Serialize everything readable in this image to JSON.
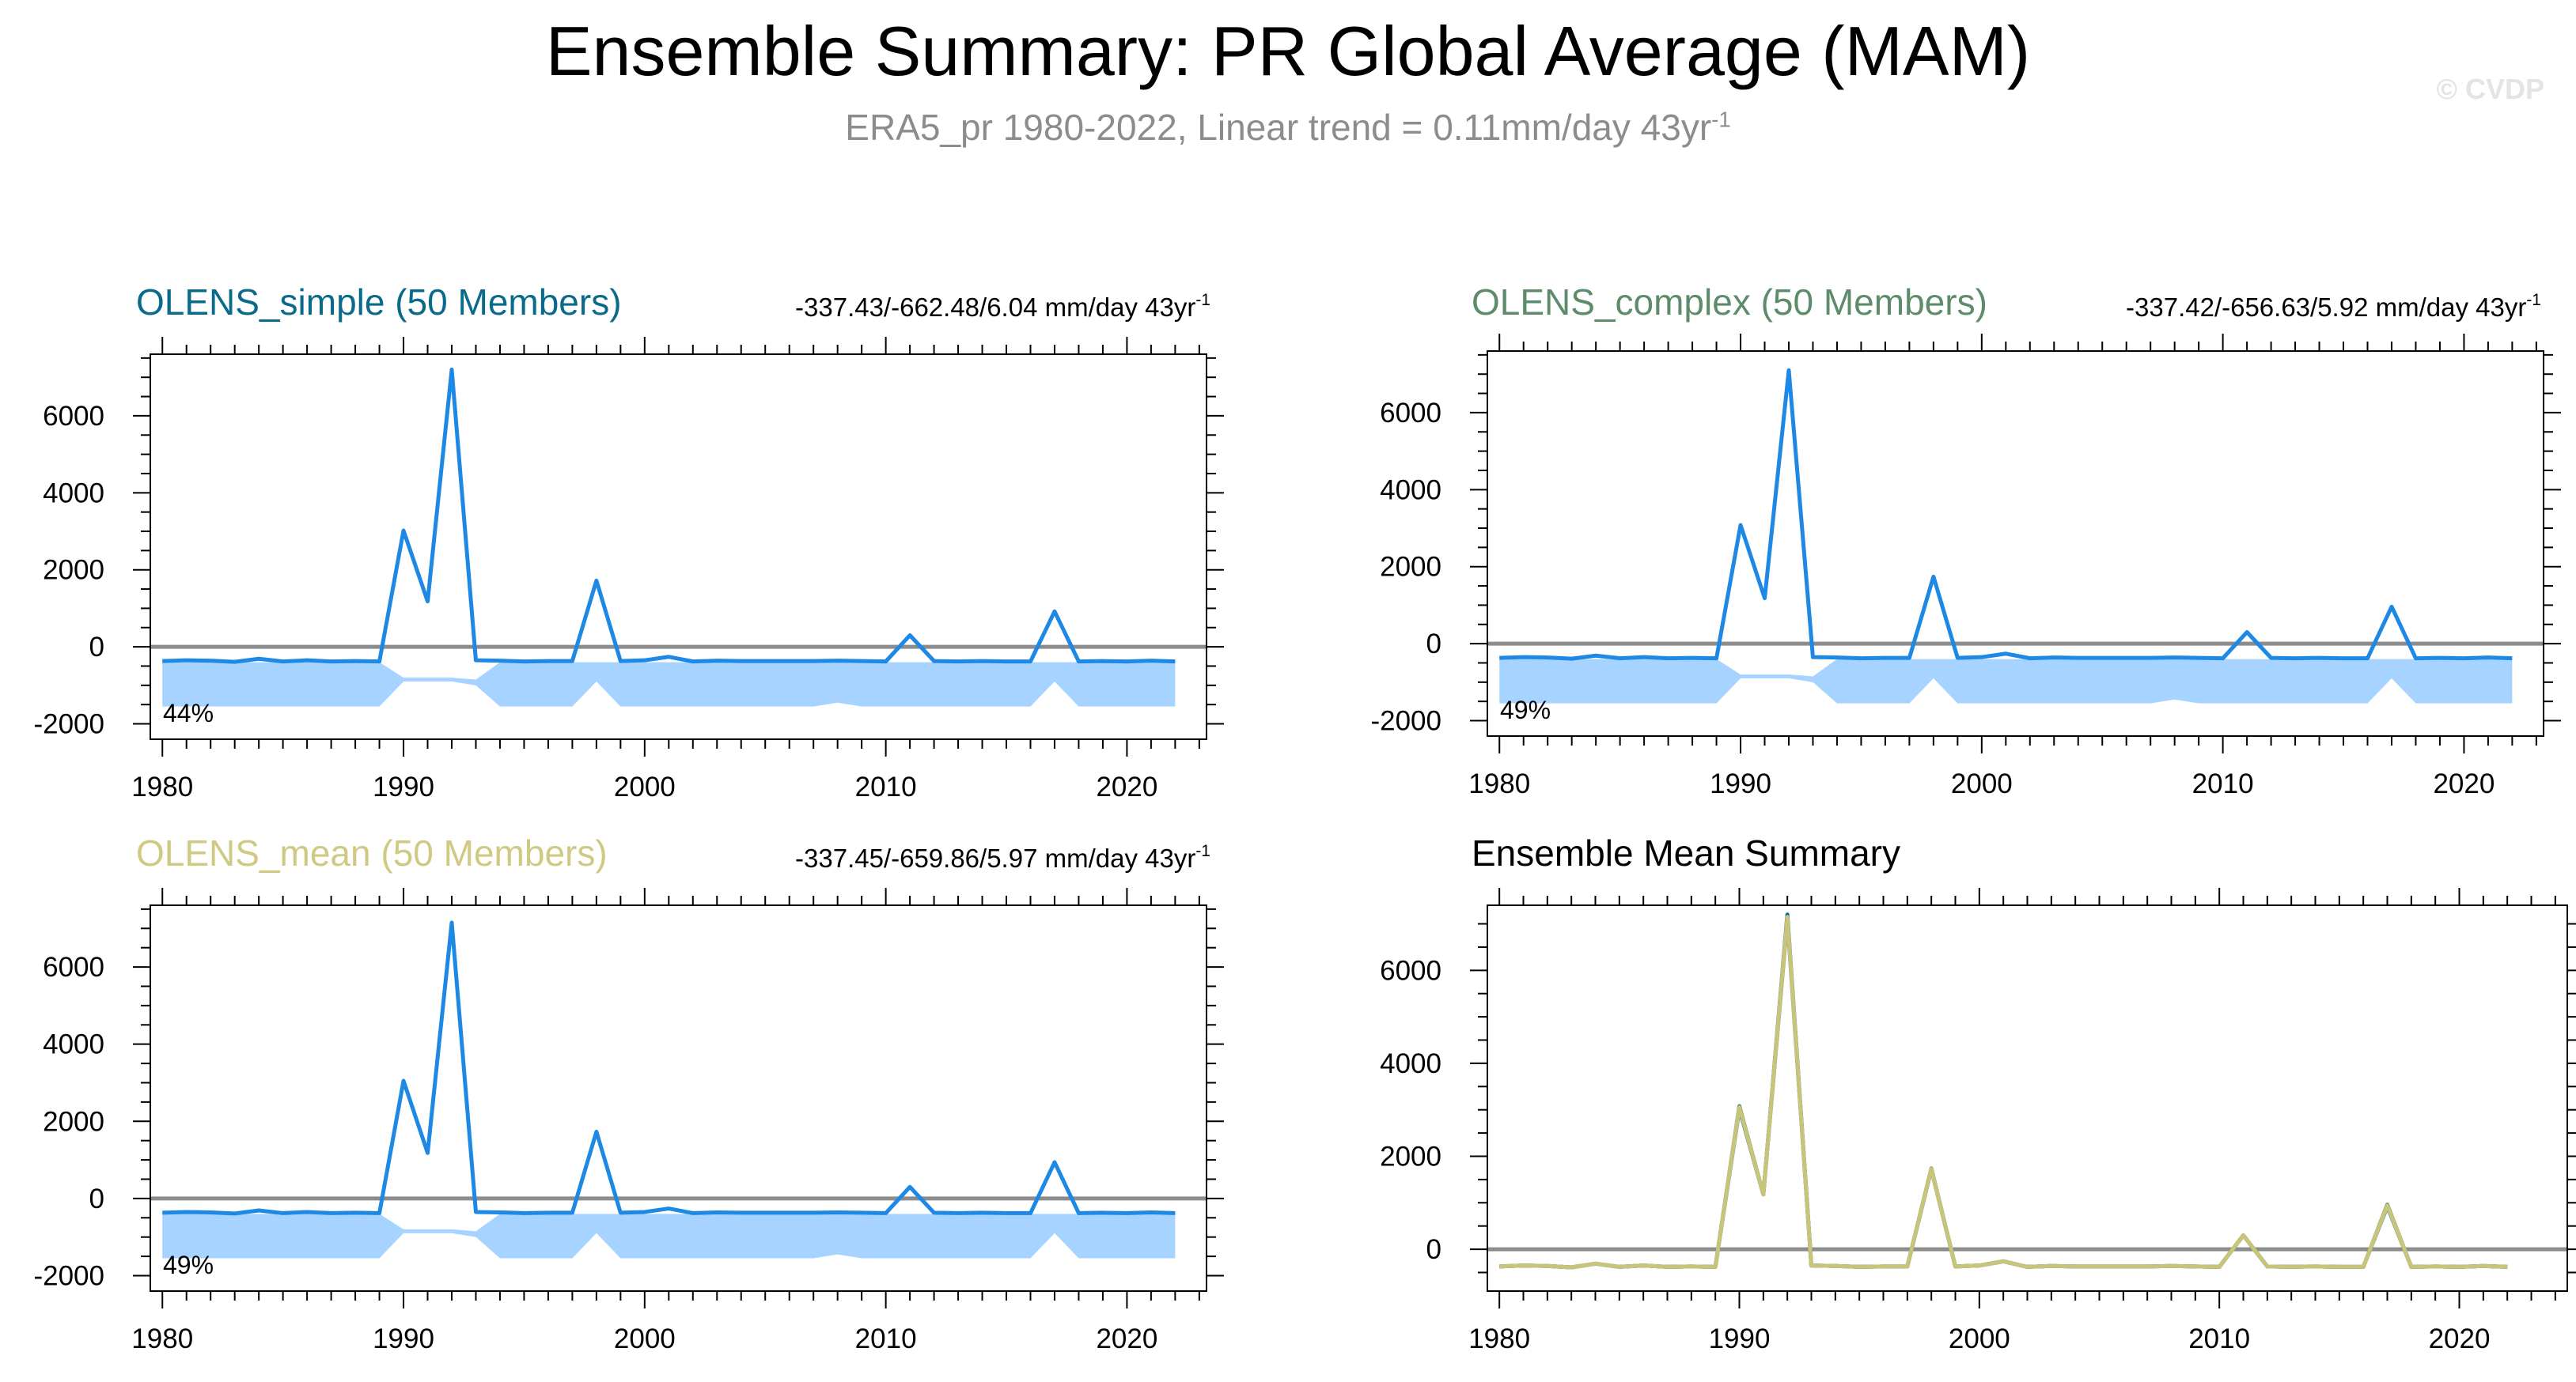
{
  "figure": {
    "title": "Ensemble Summary: PR Global Average (MAM)",
    "subtitle_main": "ERA5_pr 1980-2022, Linear trend = 0.11mm/day 43yr",
    "subtitle_sup": "-1",
    "credit": "© CVDP"
  },
  "colors": {
    "line": "#1e88e5",
    "band": "#a6d3ff",
    "zero": "#8c8c8c",
    "simple_title": "#0a6a8a",
    "complex_title": "#5e8c6a",
    "mean_title": "#cfc983",
    "summary_title": "#000000",
    "summary_line": "#c8c47a"
  },
  "chart_data": [
    {
      "type": "line",
      "title": "OLENS_simple (50 Members)",
      "stats": "-337.43/-662.48/6.04 mm/day 43yr",
      "stats_sup": "-1",
      "percent_label": "44%",
      "x": [
        1980,
        1981,
        1982,
        1983,
        1984,
        1985,
        1986,
        1987,
        1988,
        1989,
        1990,
        1991,
        1992,
        1993,
        1994,
        1995,
        1996,
        1997,
        1998,
        1999,
        2000,
        2001,
        2002,
        2003,
        2004,
        2005,
        2006,
        2007,
        2008,
        2009,
        2010,
        2011,
        2012,
        2013,
        2014,
        2015,
        2016,
        2017,
        2018,
        2019,
        2020,
        2021,
        2022
      ],
      "values": [
        -370,
        -350,
        -360,
        -390,
        -310,
        -380,
        -350,
        -380,
        -370,
        -380,
        3020,
        1180,
        7200,
        -350,
        -360,
        -380,
        -370,
        -370,
        1720,
        -370,
        -350,
        -260,
        -380,
        -360,
        -370,
        -370,
        -370,
        -370,
        -360,
        -370,
        -380,
        300,
        -370,
        -380,
        -370,
        -380,
        -380,
        920,
        -380,
        -370,
        -380,
        -360,
        -380
      ],
      "band_upper": [
        -400,
        -400,
        -400,
        -400,
        -400,
        -400,
        -400,
        -400,
        -400,
        -400,
        -800,
        -800,
        -800,
        -850,
        -400,
        -400,
        -400,
        -400,
        -400,
        -400,
        -400,
        -400,
        -400,
        -400,
        -400,
        -400,
        -400,
        -400,
        -400,
        -400,
        -400,
        -400,
        -400,
        -400,
        -400,
        -400,
        -400,
        -400,
        -400,
        -400,
        -400,
        -400,
        -400
      ],
      "band_lower": [
        -1550,
        -1550,
        -1550,
        -1550,
        -1550,
        -1550,
        -1550,
        -1550,
        -1550,
        -1550,
        -900,
        -900,
        -900,
        -1000,
        -1550,
        -1550,
        -1550,
        -1550,
        -900,
        -1550,
        -1550,
        -1550,
        -1550,
        -1550,
        -1550,
        -1550,
        -1550,
        -1550,
        -1450,
        -1550,
        -1550,
        -1550,
        -1550,
        -1550,
        -1550,
        -1550,
        -1550,
        -900,
        -1550,
        -1550,
        -1550,
        -1550,
        -1550
      ],
      "ylim": [
        -2400,
        7600
      ],
      "yticks": [
        -2000,
        0,
        2000,
        4000,
        6000
      ],
      "ytick_labels": [
        "-2000",
        "0",
        "2000",
        "4000",
        "6000"
      ],
      "xlim": [
        1979.5,
        2023.3
      ],
      "xticks": [
        1980,
        1990,
        2000,
        2010,
        2020
      ],
      "xtick_labels": [
        "1980",
        "1990",
        "2000",
        "2010",
        "2020"
      ]
    },
    {
      "type": "line",
      "title": "OLENS_complex (50 Members)",
      "stats": "-337.42/-656.63/5.92 mm/day 43yr",
      "stats_sup": "-1",
      "percent_label": "49%",
      "x": [
        1980,
        1981,
        1982,
        1983,
        1984,
        1985,
        1986,
        1987,
        1988,
        1989,
        1990,
        1991,
        1992,
        1993,
        1994,
        1995,
        1996,
        1997,
        1998,
        1999,
        2000,
        2001,
        2002,
        2003,
        2004,
        2005,
        2006,
        2007,
        2008,
        2009,
        2010,
        2011,
        2012,
        2013,
        2014,
        2015,
        2016,
        2017,
        2018,
        2019,
        2020,
        2021,
        2022
      ],
      "values": [
        -370,
        -350,
        -360,
        -390,
        -310,
        -380,
        -350,
        -380,
        -370,
        -380,
        3080,
        1180,
        7100,
        -350,
        -360,
        -380,
        -370,
        -370,
        1740,
        -370,
        -350,
        -260,
        -380,
        -360,
        -370,
        -370,
        -370,
        -370,
        -360,
        -370,
        -380,
        300,
        -370,
        -380,
        -370,
        -380,
        -380,
        960,
        -380,
        -370,
        -380,
        -360,
        -380
      ],
      "band_upper": [
        -400,
        -400,
        -400,
        -400,
        -400,
        -400,
        -400,
        -400,
        -400,
        -400,
        -800,
        -800,
        -800,
        -850,
        -400,
        -400,
        -400,
        -400,
        -400,
        -400,
        -400,
        -400,
        -400,
        -400,
        -400,
        -400,
        -400,
        -400,
        -400,
        -400,
        -400,
        -400,
        -400,
        -400,
        -400,
        -400,
        -400,
        -400,
        -400,
        -400,
        -400,
        -400,
        -400
      ],
      "band_lower": [
        -1550,
        -1550,
        -1550,
        -1550,
        -1550,
        -1550,
        -1550,
        -1550,
        -1550,
        -1550,
        -900,
        -900,
        -900,
        -1000,
        -1550,
        -1550,
        -1550,
        -1550,
        -900,
        -1550,
        -1550,
        -1550,
        -1550,
        -1550,
        -1550,
        -1550,
        -1550,
        -1550,
        -1450,
        -1550,
        -1550,
        -1550,
        -1550,
        -1550,
        -1550,
        -1550,
        -1550,
        -900,
        -1550,
        -1550,
        -1550,
        -1550,
        -1550
      ],
      "ylim": [
        -2400,
        7600
      ],
      "yticks": [
        -2000,
        0,
        2000,
        4000,
        6000
      ],
      "ytick_labels": [
        "-2000",
        "0",
        "2000",
        "4000",
        "6000"
      ],
      "xlim": [
        1979.5,
        2023.3
      ],
      "xticks": [
        1980,
        1990,
        2000,
        2010,
        2020
      ],
      "xtick_labels": [
        "1980",
        "1990",
        "2000",
        "2010",
        "2020"
      ]
    },
    {
      "type": "line",
      "title": "OLENS_mean (50 Members)",
      "stats": "-337.45/-659.86/5.97 mm/day 43yr",
      "stats_sup": "-1",
      "percent_label": "49%",
      "x": [
        1980,
        1981,
        1982,
        1983,
        1984,
        1985,
        1986,
        1987,
        1988,
        1989,
        1990,
        1991,
        1992,
        1993,
        1994,
        1995,
        1996,
        1997,
        1998,
        1999,
        2000,
        2001,
        2002,
        2003,
        2004,
        2005,
        2006,
        2007,
        2008,
        2009,
        2010,
        2011,
        2012,
        2013,
        2014,
        2015,
        2016,
        2017,
        2018,
        2019,
        2020,
        2021,
        2022
      ],
      "values": [
        -370,
        -350,
        -360,
        -390,
        -310,
        -380,
        -350,
        -380,
        -370,
        -380,
        3050,
        1180,
        7150,
        -350,
        -360,
        -380,
        -370,
        -370,
        1730,
        -370,
        -350,
        -260,
        -380,
        -360,
        -370,
        -370,
        -370,
        -370,
        -360,
        -370,
        -380,
        300,
        -370,
        -380,
        -370,
        -380,
        -380,
        940,
        -380,
        -370,
        -380,
        -360,
        -380
      ],
      "band_upper": [
        -400,
        -400,
        -400,
        -400,
        -400,
        -400,
        -400,
        -400,
        -400,
        -400,
        -800,
        -800,
        -800,
        -850,
        -400,
        -400,
        -400,
        -400,
        -400,
        -400,
        -400,
        -400,
        -400,
        -400,
        -400,
        -400,
        -400,
        -400,
        -400,
        -400,
        -400,
        -400,
        -400,
        -400,
        -400,
        -400,
        -400,
        -400,
        -400,
        -400,
        -400,
        -400,
        -400
      ],
      "band_lower": [
        -1550,
        -1550,
        -1550,
        -1550,
        -1550,
        -1550,
        -1550,
        -1550,
        -1550,
        -1550,
        -900,
        -900,
        -900,
        -1000,
        -1550,
        -1550,
        -1550,
        -1550,
        -900,
        -1550,
        -1550,
        -1550,
        -1550,
        -1550,
        -1550,
        -1550,
        -1550,
        -1550,
        -1450,
        -1550,
        -1550,
        -1550,
        -1550,
        -1550,
        -1550,
        -1550,
        -1550,
        -900,
        -1550,
        -1550,
        -1550,
        -1550,
        -1550
      ],
      "ylim": [
        -2400,
        7600
      ],
      "yticks": [
        -2000,
        0,
        2000,
        4000,
        6000
      ],
      "ytick_labels": [
        "-2000",
        "0",
        "2000",
        "4000",
        "6000"
      ],
      "xlim": [
        1979.5,
        2023.3
      ],
      "xticks": [
        1980,
        1990,
        2000,
        2010,
        2020
      ],
      "xtick_labels": [
        "1980",
        "1990",
        "2000",
        "2010",
        "2020"
      ]
    },
    {
      "type": "line",
      "title": "Ensemble Mean Summary",
      "x": [
        1980,
        1981,
        1982,
        1983,
        1984,
        1985,
        1986,
        1987,
        1988,
        1989,
        1990,
        1991,
        1992,
        1993,
        1994,
        1995,
        1996,
        1997,
        1998,
        1999,
        2000,
        2001,
        2002,
        2003,
        2004,
        2005,
        2006,
        2007,
        2008,
        2009,
        2010,
        2011,
        2012,
        2013,
        2014,
        2015,
        2016,
        2017,
        2018,
        2019,
        2020,
        2021,
        2022
      ],
      "series": [
        {
          "name": "OLENS_simple",
          "color": "#0a6a8a",
          "values": [
            -370,
            -350,
            -360,
            -390,
            -310,
            -380,
            -350,
            -380,
            -370,
            -380,
            3020,
            1180,
            7200,
            -350,
            -360,
            -380,
            -370,
            -370,
            1720,
            -370,
            -350,
            -260,
            -380,
            -360,
            -370,
            -370,
            -370,
            -370,
            -360,
            -370,
            -380,
            300,
            -370,
            -380,
            -370,
            -380,
            -380,
            920,
            -380,
            -370,
            -380,
            -360,
            -380
          ]
        },
        {
          "name": "OLENS_complex",
          "color": "#5e8c6a",
          "values": [
            -370,
            -350,
            -360,
            -390,
            -310,
            -380,
            -350,
            -380,
            -370,
            -380,
            3080,
            1180,
            7100,
            -350,
            -360,
            -380,
            -370,
            -370,
            1740,
            -370,
            -350,
            -260,
            -380,
            -360,
            -370,
            -370,
            -370,
            -370,
            -360,
            -370,
            -380,
            300,
            -370,
            -380,
            -370,
            -380,
            -380,
            960,
            -380,
            -370,
            -380,
            -360,
            -380
          ]
        },
        {
          "name": "OLENS_mean",
          "color": "#c8c47a",
          "values": [
            -370,
            -350,
            -360,
            -390,
            -310,
            -380,
            -350,
            -380,
            -370,
            -380,
            3050,
            1180,
            7150,
            -350,
            -360,
            -380,
            -370,
            -370,
            1730,
            -370,
            -350,
            -260,
            -380,
            -360,
            -370,
            -370,
            -370,
            -370,
            -360,
            -370,
            -380,
            300,
            -370,
            -380,
            -370,
            -380,
            -380,
            940,
            -380,
            -370,
            -380,
            -360,
            -380
          ]
        }
      ],
      "ylim": [
        -900,
        7400
      ],
      "yticks": [
        0,
        2000,
        4000,
        6000
      ],
      "ytick_labels": [
        "0",
        "2000",
        "4000",
        "6000"
      ],
      "xlim": [
        1979.5,
        2024.5
      ],
      "xticks": [
        1980,
        1990,
        2000,
        2010,
        2020
      ],
      "xtick_labels": [
        "1980",
        "1990",
        "2000",
        "2010",
        "2020"
      ]
    }
  ]
}
